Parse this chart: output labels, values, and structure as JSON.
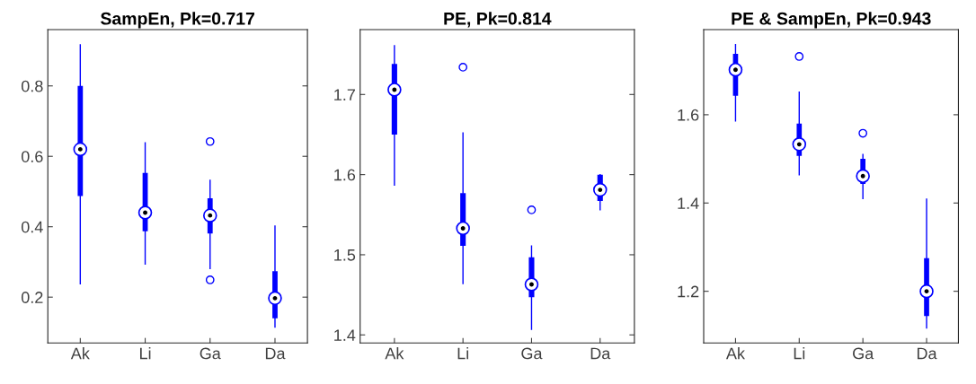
{
  "chart_data": [
    {
      "type": "box",
      "title": "SampEn, Pk=0.717",
      "categories": [
        "Ak",
        "Li",
        "Ga",
        "Da"
      ],
      "color": "#0000ff",
      "ylim": [
        0.07,
        0.96
      ],
      "yticks": [
        0.2,
        0.4,
        0.6,
        0.8
      ],
      "grid": false,
      "boxes": [
        {
          "low": 0.238,
          "q1": 0.487,
          "median": 0.62,
          "q3": 0.8,
          "high": 0.917
        },
        {
          "low": 0.294,
          "q1": 0.387,
          "median": 0.44,
          "q3": 0.553,
          "high": 0.638
        },
        {
          "low": 0.281,
          "q1": 0.381,
          "median": 0.432,
          "q3": 0.481,
          "high": 0.532,
          "outliers": [
            0.642,
            0.249
          ]
        },
        {
          "low": 0.115,
          "q1": 0.14,
          "median": 0.197,
          "q3": 0.274,
          "high": 0.402
        }
      ]
    },
    {
      "type": "box",
      "title": "PE, Pk=0.814",
      "categories": [
        "Ak",
        "Li",
        "Ga",
        "Da"
      ],
      "color": "#0000ff",
      "ylim": [
        1.39,
        1.781
      ],
      "yticks": [
        1.4,
        1.5,
        1.6,
        1.7
      ],
      "grid": false,
      "boxes": [
        {
          "low": 1.587,
          "q1": 1.65,
          "median": 1.706,
          "q3": 1.738,
          "high": 1.761
        },
        {
          "low": 1.464,
          "q1": 1.511,
          "median": 1.533,
          "q3": 1.577,
          "high": 1.652,
          "outliers": [
            1.734
          ]
        },
        {
          "low": 1.407,
          "q1": 1.447,
          "median": 1.463,
          "q3": 1.497,
          "high": 1.511,
          "outliers": [
            1.556
          ]
        },
        {
          "low": 1.556,
          "q1": 1.567,
          "median": 1.581,
          "q3": 1.6,
          "high": 1.6
        }
      ]
    },
    {
      "type": "box",
      "title": "PE & SampEn, Pk=0.943",
      "categories": [
        "Ak",
        "Li",
        "Ga",
        "Da"
      ],
      "color": "#0000ff",
      "ylim": [
        1.083,
        1.793
      ],
      "yticks": [
        1.2,
        1.4,
        1.6
      ],
      "grid": false,
      "boxes": [
        {
          "low": 1.586,
          "q1": 1.643,
          "median": 1.702,
          "q3": 1.738,
          "high": 1.759
        },
        {
          "low": 1.464,
          "q1": 1.507,
          "median": 1.533,
          "q3": 1.58,
          "high": 1.651,
          "outliers": [
            1.732
          ]
        },
        {
          "low": 1.41,
          "q1": 1.443,
          "median": 1.461,
          "q3": 1.5,
          "high": 1.51,
          "outliers": [
            1.558
          ]
        },
        {
          "low": 1.117,
          "q1": 1.144,
          "median": 1.2,
          "q3": 1.275,
          "high": 1.409
        }
      ]
    }
  ]
}
